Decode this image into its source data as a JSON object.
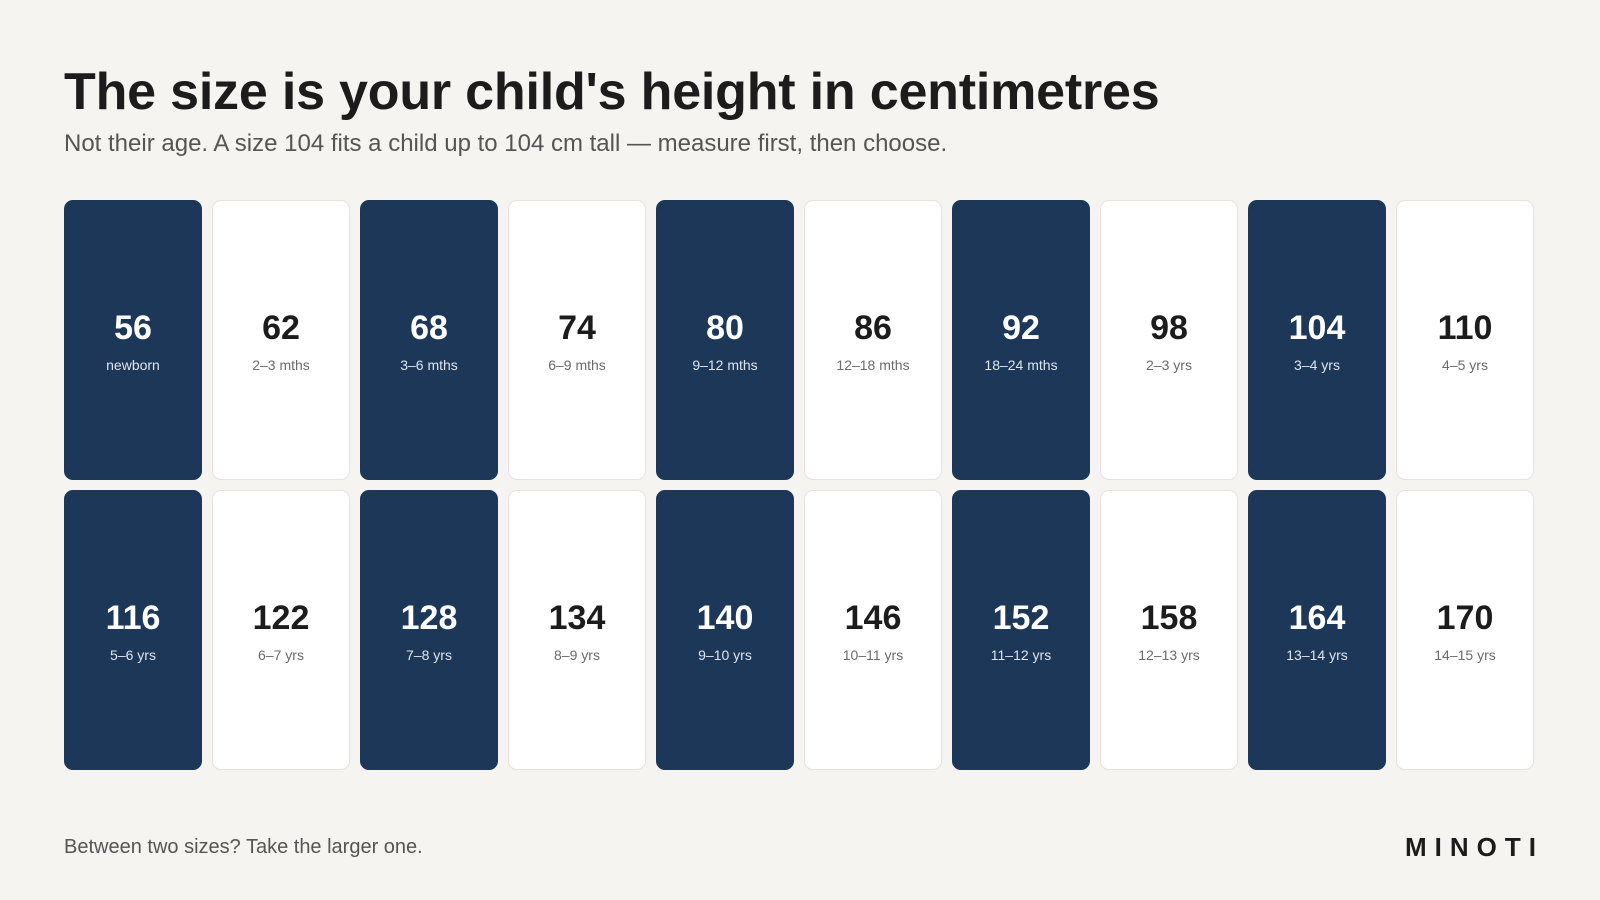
{
  "header": {
    "title": "The size is your child's height in centimetres",
    "subtitle": "Not their age. A size 104 fits a child up to 104 cm tall — measure first, then choose."
  },
  "sizes": [
    {
      "size": "56",
      "age": "newborn",
      "style": "dark"
    },
    {
      "size": "62",
      "age": "2–3 mths",
      "style": "light"
    },
    {
      "size": "68",
      "age": "3–6 mths",
      "style": "dark"
    },
    {
      "size": "74",
      "age": "6–9 mths",
      "style": "light"
    },
    {
      "size": "80",
      "age": "9–12 mths",
      "style": "dark"
    },
    {
      "size": "86",
      "age": "12–18 mths",
      "style": "light"
    },
    {
      "size": "92",
      "age": "18–24 mths",
      "style": "dark"
    },
    {
      "size": "98",
      "age": "2–3 yrs",
      "style": "light"
    },
    {
      "size": "104",
      "age": "3–4 yrs",
      "style": "dark"
    },
    {
      "size": "110",
      "age": "4–5 yrs",
      "style": "light"
    },
    {
      "size": "116",
      "age": "5–6 yrs",
      "style": "dark"
    },
    {
      "size": "122",
      "age": "6–7 yrs",
      "style": "light"
    },
    {
      "size": "128",
      "age": "7–8 yrs",
      "style": "dark"
    },
    {
      "size": "134",
      "age": "8–9 yrs",
      "style": "light"
    },
    {
      "size": "140",
      "age": "9–10 yrs",
      "style": "dark"
    },
    {
      "size": "146",
      "age": "10–11 yrs",
      "style": "light"
    },
    {
      "size": "152",
      "age": "11–12 yrs",
      "style": "dark"
    },
    {
      "size": "158",
      "age": "12–13 yrs",
      "style": "light"
    },
    {
      "size": "164",
      "age": "13–14 yrs",
      "style": "dark"
    },
    {
      "size": "170",
      "age": "14–15 yrs",
      "style": "light"
    }
  ],
  "footer": {
    "note": "Between two sizes? Take the larger one.",
    "brand": "MINOTI"
  },
  "colors": {
    "background": "#f5f4f1",
    "dark_card": "#1d3759",
    "light_card": "#ffffff"
  }
}
